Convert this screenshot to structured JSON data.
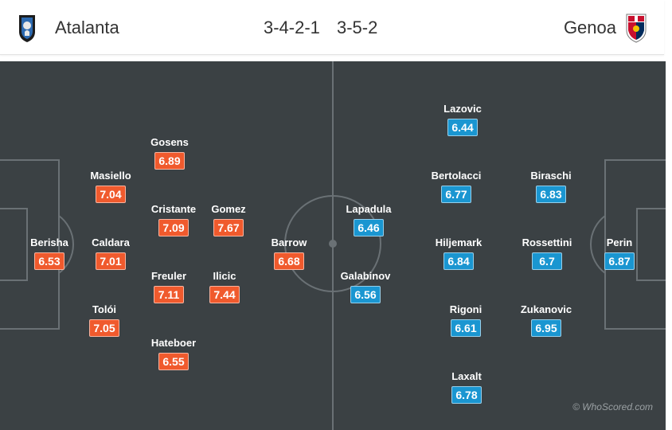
{
  "header": {
    "home_team": "Atalanta",
    "home_formation": "3-4-2-1",
    "away_formation": "3-5-2",
    "away_team": "Genoa",
    "home_crest_icon": "atalanta-crest-icon",
    "away_crest_icon": "genoa-crest-icon"
  },
  "colors": {
    "home_rating": "#f05a2d",
    "away_rating": "#1a96d1",
    "pitch": "#3b4144"
  },
  "home_players": [
    {
      "name": "Berisha",
      "rating": "6.53"
    },
    {
      "name": "Masiello",
      "rating": "7.04"
    },
    {
      "name": "Caldara",
      "rating": "7.01"
    },
    {
      "name": "Tolói",
      "rating": "7.05"
    },
    {
      "name": "Gosens",
      "rating": "6.89"
    },
    {
      "name": "Cristante",
      "rating": "7.09"
    },
    {
      "name": "Freuler",
      "rating": "7.11"
    },
    {
      "name": "Hateboer",
      "rating": "6.55"
    },
    {
      "name": "Gomez",
      "rating": "7.67"
    },
    {
      "name": "Ilicic",
      "rating": "7.44"
    },
    {
      "name": "Barrow",
      "rating": "6.68"
    }
  ],
  "away_players": [
    {
      "name": "Lapadula",
      "rating": "6.46"
    },
    {
      "name": "Galabinov",
      "rating": "6.56"
    },
    {
      "name": "Lazovic",
      "rating": "6.44"
    },
    {
      "name": "Bertolacci",
      "rating": "6.77"
    },
    {
      "name": "Hiljemark",
      "rating": "6.84"
    },
    {
      "name": "Rigoni",
      "rating": "6.61"
    },
    {
      "name": "Laxalt",
      "rating": "6.78"
    },
    {
      "name": "Biraschi",
      "rating": "6.83"
    },
    {
      "name": "Rossettini",
      "rating": "6.7"
    },
    {
      "name": "Zukanovic",
      "rating": "6.95"
    },
    {
      "name": "Perin",
      "rating": "6.87"
    }
  ],
  "watermark": "© WhoScored.com"
}
